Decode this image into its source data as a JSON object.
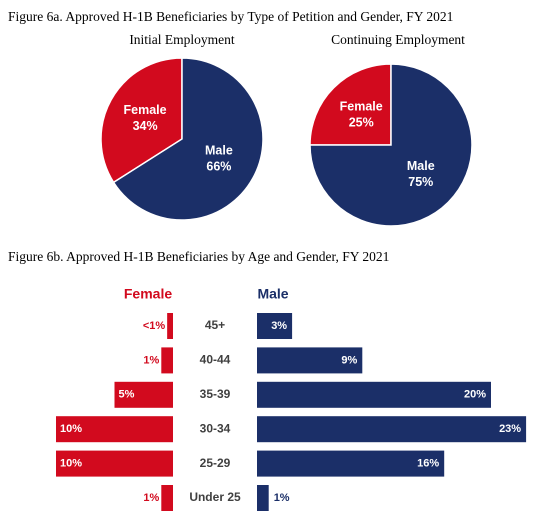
{
  "chart_data": [
    {
      "type": "pie",
      "title": "Figure 6a. Approved H-1B Beneficiaries by Type of Petition and Gender, FY 2021",
      "subtitle": "Initial Employment",
      "categories": [
        "Female",
        "Male"
      ],
      "values": [
        34,
        66
      ],
      "value_labels": [
        "34%",
        "66%"
      ],
      "colors": [
        "#d20a1e",
        "#1b2f68"
      ]
    },
    {
      "type": "pie",
      "subtitle": "Continuing Employment",
      "categories": [
        "Female",
        "Male"
      ],
      "values": [
        25,
        75
      ],
      "value_labels": [
        "25%",
        "75%"
      ],
      "colors": [
        "#d20a1e",
        "#1b2f68"
      ]
    },
    {
      "type": "butterfly",
      "title": "Figure 6b. Approved H-1B Beneficiaries by Age and Gender, FY 2021",
      "categories": [
        "45+",
        "40-44",
        "35-39",
        "30-34",
        "25-29",
        "Under 25"
      ],
      "series": [
        {
          "name": "Female",
          "color": "#d20a1e",
          "values": [
            0.5,
            1,
            5,
            10,
            10,
            1
          ],
          "value_labels": [
            "<1%",
            "1%",
            "5%",
            "10%",
            "10%",
            "1%"
          ]
        },
        {
          "name": "Male",
          "color": "#1b2f68",
          "values": [
            3,
            9,
            20,
            23,
            16,
            1
          ],
          "value_labels": [
            "3%",
            "9%",
            "20%",
            "23%",
            "16%",
            "1%"
          ]
        }
      ]
    }
  ]
}
